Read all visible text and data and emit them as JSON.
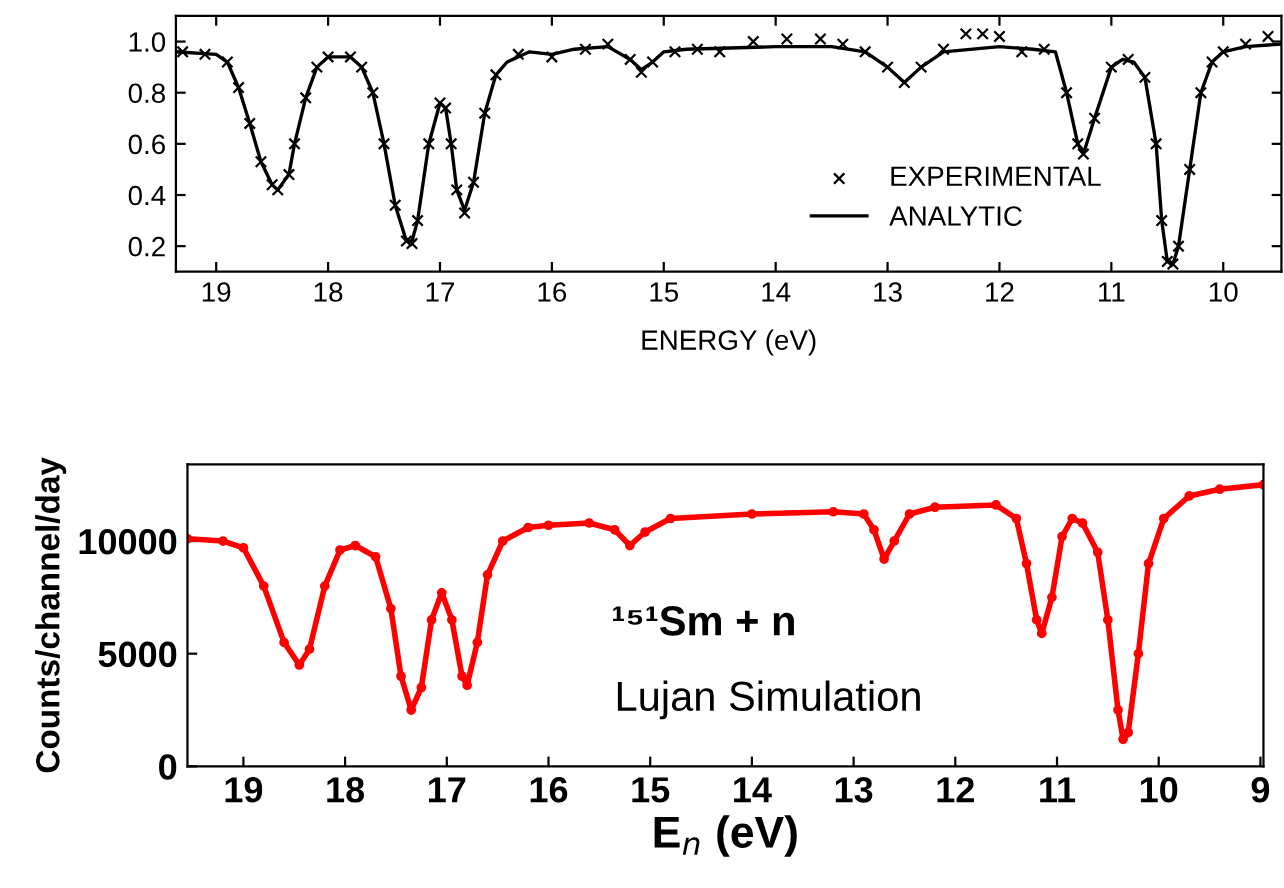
{
  "chart_data": [
    {
      "type": "line",
      "xlabel": "ENERGY (eV)",
      "xlim": [
        19.36,
        9.48
      ],
      "ylim": [
        0.1,
        1.1
      ],
      "xticks": [
        19,
        18,
        17,
        16,
        15,
        14,
        13,
        12,
        11,
        10
      ],
      "yticks": [
        0.2,
        0.4,
        0.6,
        0.8,
        {
          "value": 1.0,
          "label": "1.0"
        }
      ],
      "legend": "bottom right",
      "grid": false,
      "series": [
        {
          "name": "EXPERIMENTAL",
          "type": "scatter",
          "marker": "cross",
          "color": "#000000",
          "x": [
            19.3,
            19.1,
            18.9,
            18.8,
            18.7,
            18.6,
            18.5,
            18.45,
            18.35,
            18.3,
            18.2,
            18.1,
            18.0,
            17.8,
            17.7,
            17.6,
            17.5,
            17.4,
            17.3,
            17.25,
            17.2,
            17.1,
            17.0,
            16.95,
            16.9,
            16.85,
            16.78,
            16.7,
            16.6,
            16.5,
            16.3,
            16.0,
            15.7,
            15.5,
            15.3,
            15.2,
            15.1,
            14.9,
            14.7,
            14.5,
            14.2,
            13.9,
            13.6,
            13.4,
            13.2,
            13.0,
            12.85,
            12.7,
            12.5,
            12.3,
            12.15,
            12.0,
            11.8,
            11.6,
            11.4,
            11.3,
            11.25,
            11.15,
            11.0,
            10.85,
            10.7,
            10.6,
            10.55,
            10.5,
            10.45,
            10.4,
            10.3,
            10.2,
            10.1,
            10.0,
            9.8,
            9.6
          ],
          "values": [
            0.96,
            0.95,
            0.92,
            0.82,
            0.68,
            0.53,
            0.44,
            0.42,
            0.48,
            0.6,
            0.78,
            0.9,
            0.94,
            0.94,
            0.9,
            0.8,
            0.6,
            0.36,
            0.22,
            0.21,
            0.3,
            0.6,
            0.76,
            0.74,
            0.6,
            0.42,
            0.33,
            0.45,
            0.72,
            0.87,
            0.95,
            0.94,
            0.97,
            0.99,
            0.93,
            0.88,
            0.92,
            0.96,
            0.97,
            0.96,
            1.0,
            1.01,
            1.01,
            0.99,
            0.96,
            0.9,
            0.84,
            0.9,
            0.97,
            1.03,
            1.03,
            1.02,
            0.96,
            0.97,
            0.8,
            0.6,
            0.56,
            0.7,
            0.9,
            0.93,
            0.86,
            0.6,
            0.3,
            0.14,
            0.13,
            0.2,
            0.5,
            0.8,
            0.92,
            0.96,
            0.99,
            1.02
          ]
        },
        {
          "name": "ANALYTIC",
          "type": "line",
          "color": "#000000",
          "x": [
            19.36,
            19.0,
            18.9,
            18.8,
            18.7,
            18.6,
            18.5,
            18.45,
            18.35,
            18.3,
            18.2,
            18.1,
            18.0,
            17.8,
            17.7,
            17.6,
            17.5,
            17.4,
            17.3,
            17.25,
            17.2,
            17.1,
            17.0,
            16.95,
            16.9,
            16.85,
            16.78,
            16.7,
            16.6,
            16.5,
            16.4,
            16.2,
            16.0,
            15.8,
            15.5,
            15.3,
            15.2,
            15.1,
            15.0,
            14.8,
            14.0,
            13.5,
            13.2,
            13.0,
            12.85,
            12.7,
            12.5,
            12.0,
            11.7,
            11.5,
            11.4,
            11.3,
            11.25,
            11.15,
            11.0,
            10.9,
            10.8,
            10.7,
            10.6,
            10.55,
            10.5,
            10.45,
            10.4,
            10.3,
            10.2,
            10.1,
            10.0,
            9.8,
            9.48
          ],
          "values": [
            0.96,
            0.95,
            0.92,
            0.82,
            0.68,
            0.53,
            0.44,
            0.42,
            0.48,
            0.6,
            0.78,
            0.9,
            0.94,
            0.94,
            0.9,
            0.8,
            0.6,
            0.36,
            0.22,
            0.22,
            0.3,
            0.6,
            0.76,
            0.74,
            0.6,
            0.42,
            0.34,
            0.45,
            0.72,
            0.87,
            0.92,
            0.96,
            0.95,
            0.97,
            0.98,
            0.93,
            0.89,
            0.92,
            0.96,
            0.97,
            0.98,
            0.98,
            0.96,
            0.9,
            0.84,
            0.9,
            0.96,
            0.98,
            0.97,
            0.96,
            0.8,
            0.6,
            0.56,
            0.7,
            0.9,
            0.93,
            0.92,
            0.86,
            0.6,
            0.3,
            0.14,
            0.13,
            0.2,
            0.5,
            0.8,
            0.92,
            0.96,
            0.98,
            0.99
          ]
        }
      ]
    },
    {
      "type": "line",
      "xlabel": "E$_{n}$ (eV)",
      "ylabel": "Counts/channel/day",
      "xlim": [
        19.55,
        8.97
      ],
      "ylim": [
        0,
        13400
      ],
      "xticks": [
        19,
        18,
        17,
        16,
        15,
        14,
        13,
        12,
        11,
        10,
        9
      ],
      "yticks": [
        0,
        5000,
        10000
      ],
      "grid": false,
      "annotations": [
        "¹⁵¹Sm + n",
        "Lujan Simulation"
      ],
      "series": [
        {
          "color": "#ff0000",
          "marker": "circle",
          "x": [
            19.55,
            19.2,
            19.0,
            18.8,
            18.6,
            18.45,
            18.35,
            18.2,
            18.05,
            17.9,
            17.7,
            17.55,
            17.45,
            17.35,
            17.25,
            17.15,
            17.05,
            16.95,
            16.85,
            16.8,
            16.7,
            16.6,
            16.45,
            16.2,
            16.0,
            15.6,
            15.35,
            15.2,
            15.05,
            14.8,
            14.0,
            13.2,
            12.9,
            12.8,
            12.7,
            12.6,
            12.45,
            12.2,
            11.6,
            11.4,
            11.3,
            11.2,
            11.15,
            11.05,
            10.95,
            10.85,
            10.75,
            10.6,
            10.5,
            10.4,
            10.35,
            10.3,
            10.2,
            10.1,
            9.95,
            9.7,
            9.4,
            8.97
          ],
          "values": [
            10100,
            10000,
            9700,
            8000,
            5500,
            4500,
            5200,
            8000,
            9600,
            9800,
            9300,
            7000,
            4000,
            2500,
            3500,
            6500,
            7700,
            6500,
            4000,
            3600,
            5500,
            8500,
            10000,
            10600,
            10700,
            10800,
            10500,
            9800,
            10400,
            11000,
            11200,
            11300,
            11200,
            10500,
            9200,
            10000,
            11200,
            11500,
            11600,
            11000,
            9000,
            6500,
            5900,
            7500,
            10200,
            11000,
            10800,
            9500,
            6500,
            2500,
            1200,
            1500,
            5000,
            9000,
            11000,
            12000,
            12300,
            12500
          ]
        }
      ]
    }
  ]
}
